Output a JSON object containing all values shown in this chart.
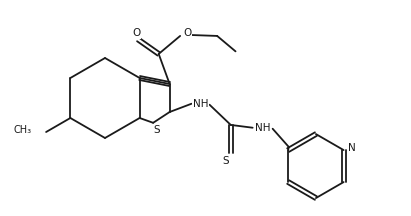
{
  "background_color": "#ffffff",
  "line_color": "#1a1a1a",
  "line_width": 1.3,
  "fig_width": 4.11,
  "fig_height": 2.16,
  "dpi": 100,
  "xlim": [
    0,
    411
  ],
  "ylim": [
    0,
    216
  ]
}
